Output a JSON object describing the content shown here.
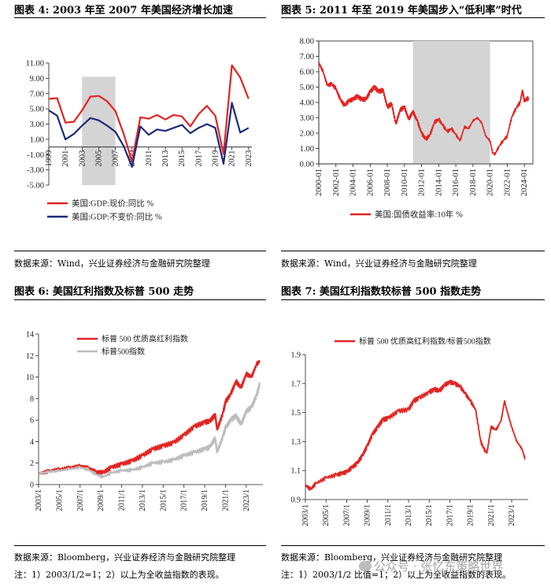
{
  "panels": {
    "p4": {
      "title": "图表 4:   2003 年至 2007 年美国经济增长加速",
      "source": "数据来源：Wind，兴业证券经济与金融研究院整理"
    },
    "p5": {
      "title": "图表 5:   2011 年至 2019 年美国步入“低利率”时代",
      "source": "数据来源：Wind，兴业证券经济与金融研究院整理"
    },
    "p6": {
      "title": "图表 6:   美国红利指数及标普 500 走势",
      "source": "数据来源：Bloomberg，兴业证券经济与金融研究院整理",
      "note": "注：1）2003/1/2=1；2）以上为全收益指数的表现。"
    },
    "p7": {
      "title": "图表 7:   美国红利指数较标普 500 指数走势",
      "source": "数据来源：Bloomberg，兴业证券经济与金融研究院整理",
      "note": "注：1）2003/1/2 比值=1；2）以上为全收益指数的表现。"
    }
  },
  "watermark": "公众号 · 张忆东策略世界",
  "colors": {
    "red": "#e32422",
    "navy": "#1b2a7a",
    "gray": "#bdbdbd",
    "shade": "#d4d4d4"
  },
  "chart_data": [
    {
      "id": "chart4",
      "type": "line",
      "title": "2003 年至 2007 年美国经济增长加速",
      "ylim": [
        -5,
        11
      ],
      "yticks": [
        "11.00",
        "9.00",
        "7.00",
        "5.00",
        "3.00",
        "1.00",
        "-1.00",
        "-3.00",
        "-5.00"
      ],
      "xticks": [
        "1999",
        "2001",
        "2003",
        "2005",
        "2007",
        "2009",
        "2011",
        "2013",
        "2015",
        "2017",
        "2019",
        "2021",
        "2023"
      ],
      "shaded": [
        2003,
        2007
      ],
      "series": [
        {
          "name": "美国:GDP:现价:同比 %",
          "color": "red",
          "x": [
            1999,
            2000,
            2001,
            2002,
            2003,
            2004,
            2005,
            2006,
            2007,
            2008,
            2009,
            2010,
            2011,
            2012,
            2013,
            2014,
            2015,
            2016,
            2017,
            2018,
            2019,
            2020,
            2021,
            2022,
            2023
          ],
          "values": [
            6.3,
            6.4,
            3.2,
            3.3,
            4.8,
            6.6,
            6.7,
            6.0,
            4.7,
            1.7,
            -1.9,
            3.9,
            3.7,
            4.2,
            3.6,
            4.2,
            4.0,
            2.7,
            4.3,
            5.4,
            4.1,
            -0.9,
            10.7,
            9.1,
            6.3
          ]
        },
        {
          "name": "美国:GDP:不变价:同比 %",
          "color": "navy",
          "x": [
            1999,
            2000,
            2001,
            2002,
            2003,
            2004,
            2005,
            2006,
            2007,
            2008,
            2009,
            2010,
            2011,
            2012,
            2013,
            2014,
            2015,
            2016,
            2017,
            2018,
            2019,
            2020,
            2021,
            2022,
            2023
          ],
          "values": [
            4.8,
            4.1,
            1.0,
            1.7,
            2.8,
            3.8,
            3.5,
            2.8,
            2.0,
            0.1,
            -2.6,
            2.7,
            1.6,
            2.3,
            2.1,
            2.5,
            2.9,
            1.8,
            2.5,
            3.0,
            2.5,
            -2.2,
            5.8,
            1.9,
            2.5
          ]
        }
      ]
    },
    {
      "id": "chart5",
      "type": "line",
      "title": "2011 年至 2019 年美国步入“低利率”时代",
      "ylim": [
        0,
        8
      ],
      "yticks": [
        "8.00",
        "7.00",
        "6.00",
        "5.00",
        "4.00",
        "3.00",
        "2.00",
        "1.00",
        "0.00"
      ],
      "xticks": [
        "2000-01",
        "2002-01",
        "2004-01",
        "2006-01",
        "2008-01",
        "2010-01",
        "2012-01",
        "2014-01",
        "2016-01",
        "2018-01",
        "2020-01",
        "2022-01",
        "2024-01"
      ],
      "shaded": [
        2011,
        2020
      ],
      "series": [
        {
          "name": "美国:国债收益率:10年 %",
          "color": "red",
          "x": [
            2000,
            2000.5,
            2001,
            2001.5,
            2002,
            2002.5,
            2003,
            2003.5,
            2004,
            2004.5,
            2005,
            2005.5,
            2006,
            2006.5,
            2007,
            2007.5,
            2008,
            2008.5,
            2009,
            2009.5,
            2010,
            2010.5,
            2011,
            2011.5,
            2012,
            2012.5,
            2013,
            2013.5,
            2014,
            2014.5,
            2015,
            2015.5,
            2016,
            2016.5,
            2017,
            2017.5,
            2018,
            2018.5,
            2019,
            2019.5,
            2020,
            2020.3,
            2020.6,
            2021,
            2021.5,
            2022,
            2022.5,
            2023,
            2023.5,
            2023.8,
            2024,
            2024.5
          ],
          "values": [
            6.6,
            6.0,
            5.1,
            5.2,
            4.9,
            4.2,
            3.8,
            4.1,
            4.2,
            4.4,
            4.2,
            4.2,
            4.7,
            5.0,
            4.7,
            4.8,
            3.7,
            3.9,
            2.6,
            3.5,
            3.7,
            2.9,
            3.4,
            2.8,
            2.0,
            1.6,
            1.9,
            2.7,
            2.9,
            2.5,
            2.1,
            2.3,
            1.9,
            1.5,
            2.4,
            2.3,
            2.8,
            3.0,
            2.7,
            1.8,
            1.5,
            0.7,
            0.65,
            1.1,
            1.5,
            1.8,
            3.0,
            3.6,
            4.0,
            4.8,
            4.1,
            4.3
          ]
        }
      ]
    },
    {
      "id": "chart6",
      "type": "line",
      "title": "美国红利指数及标普 500 走势",
      "ylim": [
        0,
        14
      ],
      "yticks": [
        "14",
        "12",
        "10",
        "8",
        "6",
        "4",
        "2",
        "0"
      ],
      "xticks": [
        "2003/1",
        "2005/1",
        "2007/1",
        "2009/1",
        "2011/1",
        "2013/1",
        "2015/1",
        "2017/1",
        "2019/1",
        "2021/1",
        "2023/1"
      ],
      "series": [
        {
          "name": "标普 500 优质高红利指数",
          "color": "red",
          "x": [
            2003,
            2004,
            2005,
            2006,
            2007,
            2007.8,
            2008.5,
            2009.2,
            2010,
            2011,
            2012,
            2013,
            2014,
            2015,
            2016,
            2017,
            2018,
            2019,
            2019.5,
            2020,
            2020.2,
            2020.8,
            2021,
            2021.5,
            2022,
            2022.5,
            2023,
            2023.5,
            2024,
            2024.3
          ],
          "values": [
            1.0,
            1.25,
            1.4,
            1.55,
            1.7,
            1.5,
            1.15,
            1.1,
            1.6,
            1.9,
            2.2,
            2.7,
            3.3,
            3.6,
            3.9,
            4.6,
            5.4,
            5.8,
            5.9,
            6.5,
            5.1,
            6.8,
            7.7,
            8.4,
            9.6,
            9.0,
            10.3,
            10.0,
            11.2,
            11.5
          ]
        },
        {
          "name": "标普500指数",
          "color": "gray",
          "x": [
            2003,
            2004,
            2005,
            2006,
            2007,
            2007.8,
            2008.5,
            2009.2,
            2010,
            2011,
            2012,
            2013,
            2014,
            2015,
            2016,
            2017,
            2018,
            2019,
            2019.5,
            2020,
            2020.2,
            2020.8,
            2021,
            2021.5,
            2022,
            2022.5,
            2023,
            2023.5,
            2024,
            2024.3
          ],
          "values": [
            1.0,
            1.2,
            1.3,
            1.45,
            1.6,
            1.4,
            0.95,
            0.7,
            1.1,
            1.3,
            1.35,
            1.6,
            2.0,
            2.1,
            2.3,
            2.7,
            3.0,
            3.3,
            3.5,
            4.3,
            3.0,
            4.6,
            5.3,
            6.0,
            6.4,
            5.6,
            6.8,
            7.2,
            8.3,
            9.4
          ]
        }
      ]
    },
    {
      "id": "chart7",
      "type": "line",
      "title": "美国红利指数较标普 500 指数走势",
      "ylim": [
        0.9,
        1.9
      ],
      "yticks": [
        "1.9",
        "1.7",
        "1.5",
        "1.3",
        "1.1",
        "0.9"
      ],
      "xticks": [
        "2003/1",
        "2005/1",
        "2007/1",
        "2009/1",
        "2011/1",
        "2013/1",
        "2015/1",
        "2017/1",
        "2019/1",
        "2021/1",
        "2023/1"
      ],
      "series": [
        {
          "name": "标普 500 优质高红利指数/标普500指数",
          "color": "red",
          "x": [
            2003,
            2003.5,
            2004,
            2005,
            2006,
            2006.5,
            2007,
            2007.5,
            2008,
            2008.5,
            2009,
            2009.5,
            2010,
            2010.5,
            2011,
            2012,
            2013,
            2013.5,
            2014,
            2015,
            2015.5,
            2016,
            2016.5,
            2017,
            2017.5,
            2018,
            2018.5,
            2019,
            2019.5,
            2020,
            2020.3,
            2020.6,
            2021,
            2021.5,
            2022,
            2022.3,
            2022.6,
            2023,
            2023.5,
            2024,
            2024.3
          ],
          "values": [
            1.0,
            0.97,
            1.01,
            1.05,
            1.07,
            1.08,
            1.09,
            1.12,
            1.15,
            1.2,
            1.27,
            1.35,
            1.4,
            1.45,
            1.46,
            1.51,
            1.52,
            1.58,
            1.6,
            1.64,
            1.66,
            1.65,
            1.69,
            1.71,
            1.7,
            1.68,
            1.63,
            1.58,
            1.52,
            1.3,
            1.25,
            1.22,
            1.4,
            1.38,
            1.45,
            1.58,
            1.5,
            1.4,
            1.3,
            1.25,
            1.18
          ]
        }
      ]
    }
  ]
}
